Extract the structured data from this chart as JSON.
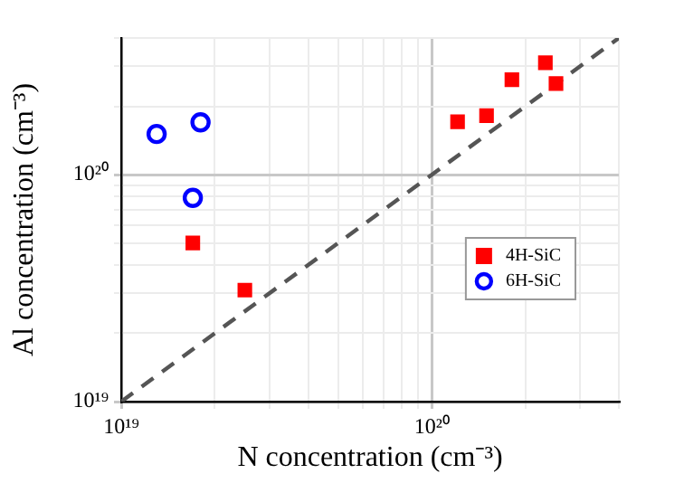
{
  "chart_data": {
    "type": "scatter",
    "xlabel": "N concentration (cm⁻³)",
    "ylabel": "Al concentration (cm⁻³)",
    "log": "xy",
    "grid": true,
    "legend": "right",
    "xlim": [
      1e+19,
      4e+20
    ],
    "ylim": [
      1e+19,
      4e+20
    ],
    "xticks": [
      {
        "value": 1e+19,
        "label": "10¹⁹"
      },
      {
        "value": 2e+19,
        "label": null
      },
      {
        "value": 3e+19,
        "label": null
      },
      {
        "value": 4e+19,
        "label": null
      },
      {
        "value": 5e+19,
        "label": null
      },
      {
        "value": 6e+19,
        "label": null
      },
      {
        "value": 7e+19,
        "label": null
      },
      {
        "value": 8e+19,
        "label": null
      },
      {
        "value": 9e+19,
        "label": null
      },
      {
        "value": 1e+20,
        "label": "10²⁰"
      },
      {
        "value": 2e+20,
        "label": null
      },
      {
        "value": 3e+20,
        "label": null
      },
      {
        "value": 4e+20,
        "label": null
      }
    ],
    "yticks": [
      {
        "value": 1e+19,
        "label": "10¹⁹"
      },
      {
        "value": 2e+19,
        "label": null
      },
      {
        "value": 3e+19,
        "label": null
      },
      {
        "value": 4e+19,
        "label": null
      },
      {
        "value": 5e+19,
        "label": null
      },
      {
        "value": 6e+19,
        "label": null
      },
      {
        "value": 7e+19,
        "label": null
      },
      {
        "value": 8e+19,
        "label": null
      },
      {
        "value": 9e+19,
        "label": null
      },
      {
        "value": 1e+20,
        "label": "10²⁰"
      },
      {
        "value": 2e+20,
        "label": null
      },
      {
        "value": 3e+20,
        "label": null
      },
      {
        "value": 4e+20,
        "label": null
      }
    ],
    "series": [
      {
        "name": "4H-SiC",
        "color": "#ff0000",
        "marker": "square",
        "x": [
          1.7e+19,
          2.5e+19,
          1.21e+20,
          1.5e+20,
          1.81e+20,
          2.32e+20,
          2.51e+20
        ],
        "values": [
          5e+19,
          3.1e+19,
          1.71e+20,
          1.82e+20,
          2.62e+20,
          3.11e+20,
          2.52e+20
        ]
      },
      {
        "name": "6H-SiC",
        "color": "#0000ff",
        "marker": "circle",
        "x": [
          1.3e+19,
          1.8e+19,
          1.7e+19
        ],
        "values": [
          1.51e+20,
          1.7e+20,
          7.9e+19
        ]
      },
      {
        "type": "line",
        "color": "#555555",
        "line_style": "dashed",
        "marker": "none",
        "x": [
          1e+19,
          4e+20
        ],
        "values": [
          1e+19,
          4e+20
        ]
      }
    ]
  }
}
